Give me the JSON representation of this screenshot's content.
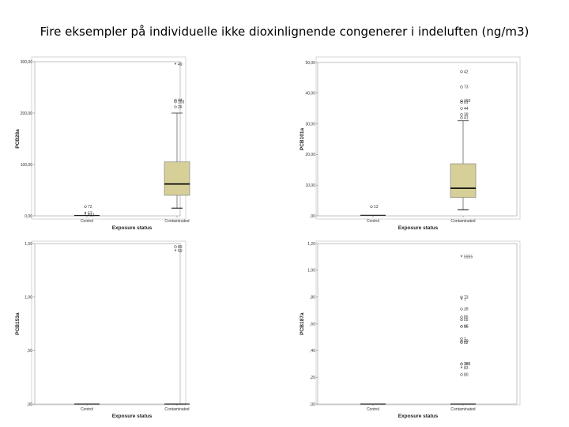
{
  "title": "Fire eksempler på individuelle ikke dioxinlignende congenerer i indeluften (ng/m3)",
  "colors": {
    "box_fill": "#d6cf98",
    "frame": "#888888",
    "median": "#000000"
  },
  "chart_data": [
    {
      "type": "boxplot",
      "ylabel": "PCB28a",
      "xlabel": "Exposure status",
      "categories": [
        "Control",
        "Contaminated"
      ],
      "yticks": [
        "0,00",
        "100,00",
        "200,00",
        "300,00"
      ],
      "ylim": [
        0,
        300
      ],
      "boxes": [
        {
          "category": "Control",
          "flat": true,
          "median": 0.5
        },
        {
          "category": "Contaminated",
          "whisker_low": 15,
          "q1": 40,
          "median": 62,
          "q3": 105,
          "whisker_high": 200
        }
      ],
      "outliers": [
        {
          "category": "Control",
          "value": 5,
          "marker": "star",
          "labels": "57"
        },
        {
          "category": "Control",
          "value": 18,
          "marker": "circle",
          "labels": "72"
        },
        {
          "category": "Control",
          "value": 2,
          "marker": "star",
          "labels": "423"
        },
        {
          "category": "Contaminated",
          "value": 212,
          "marker": "circle",
          "labels": "26"
        },
        {
          "category": "Contaminated",
          "value": 222,
          "marker": "circle",
          "labels": "103"
        },
        {
          "category": "Contaminated",
          "value": 225,
          "marker": "circle",
          "labels": "44"
        },
        {
          "category": "Contaminated",
          "value": 295,
          "marker": "star",
          "labels": "49"
        }
      ]
    },
    {
      "type": "boxplot",
      "ylabel": "PCB101a",
      "xlabel": "Exposure status",
      "categories": [
        "Control",
        "Contaminated"
      ],
      "yticks": [
        ",00",
        "10,00",
        "20,00",
        "30,00",
        "40,00",
        "50,00"
      ],
      "ylim": [
        0,
        50
      ],
      "boxes": [
        {
          "category": "Control",
          "flat": true,
          "median": 0.2
        },
        {
          "category": "Contaminated",
          "whisker_low": 2,
          "q1": 6,
          "median": 9,
          "q3": 17,
          "whisker_high": 31
        }
      ],
      "outliers": [
        {
          "category": "Control",
          "value": 3,
          "marker": "circle",
          "labels": "13"
        },
        {
          "category": "Contaminated",
          "value": 32,
          "marker": "circle",
          "labels": "41"
        },
        {
          "category": "Contaminated",
          "value": 33,
          "marker": "circle",
          "labels": "39"
        },
        {
          "category": "Contaminated",
          "value": 35,
          "marker": "circle",
          "labels": "44"
        },
        {
          "category": "Contaminated",
          "value": 37,
          "marker": "circle",
          "labels": "81"
        },
        {
          "category": "Contaminated",
          "value": 37.5,
          "marker": "circle",
          "labels": "103"
        },
        {
          "category": "Contaminated",
          "value": 42,
          "marker": "circle",
          "labels": "73"
        },
        {
          "category": "Contaminated",
          "value": 47,
          "marker": "circle",
          "labels": "42"
        }
      ]
    },
    {
      "type": "boxplot",
      "ylabel": "PCB153a",
      "xlabel": "Exposure status",
      "categories": [
        "Control",
        "Contaminated"
      ],
      "yticks": [
        ",00",
        ",50",
        "1,00",
        "1,50"
      ],
      "ylim": [
        0,
        1.5
      ],
      "boxes": [
        {
          "category": "Control",
          "flat": true,
          "median": 0
        },
        {
          "category": "Contaminated",
          "flat": true,
          "median": 0
        }
      ],
      "outliers": [
        {
          "category": "Contaminated",
          "value": 1.47,
          "marker": "circle",
          "labels": "89"
        },
        {
          "category": "Contaminated",
          "value": 1.43,
          "marker": "star",
          "labels": "59"
        }
      ]
    },
    {
      "type": "boxplot",
      "ylabel": "PCB187a",
      "xlabel": "Exposure status",
      "categories": [
        "Control",
        "Contaminated"
      ],
      "yticks": [
        ",00",
        ",20",
        ",40",
        ",60",
        ",80",
        "1,00",
        "1,20"
      ],
      "ylim": [
        0,
        1.2
      ],
      "boxes": [
        {
          "category": "Control",
          "flat": true,
          "median": 0
        },
        {
          "category": "Contaminated",
          "flat": true,
          "median": 0
        }
      ],
      "outliers": [
        {
          "category": "Contaminated",
          "value": 1.1,
          "marker": "star",
          "labels": "5955"
        },
        {
          "category": "Contaminated",
          "value": 0.78,
          "marker": "star",
          "labels": "7"
        },
        {
          "category": "Contaminated",
          "value": 0.8,
          "marker": "circle",
          "labels": "73"
        },
        {
          "category": "Contaminated",
          "value": 0.71,
          "marker": "circle",
          "labels": "39"
        },
        {
          "category": "Contaminated",
          "value": 0.65,
          "marker": "circle",
          "labels": "85"
        },
        {
          "category": "Contaminated",
          "value": 0.63,
          "marker": "circle",
          "labels": "55"
        },
        {
          "category": "Contaminated",
          "value": 0.58,
          "marker": "circle",
          "labels": "86"
        },
        {
          "category": "Contaminated",
          "value": 0.58,
          "marker": "circle",
          "labels": "16"
        },
        {
          "category": "Contaminated",
          "value": 0.49,
          "marker": "circle",
          "labels": "1"
        },
        {
          "category": "Contaminated",
          "value": 0.47,
          "marker": "circle",
          "labels": "49"
        },
        {
          "category": "Contaminated",
          "value": 0.46,
          "marker": "circle",
          "labels": "82"
        },
        {
          "category": "Contaminated",
          "value": 0.3,
          "marker": "circle",
          "labels": "108"
        },
        {
          "category": "Contaminated",
          "value": 0.3,
          "marker": "circle",
          "labels": "38"
        },
        {
          "category": "Contaminated",
          "value": 0.27,
          "marker": "star",
          "labels": "83"
        },
        {
          "category": "Contaminated",
          "value": 0.22,
          "marker": "circle",
          "labels": "80"
        }
      ]
    }
  ]
}
